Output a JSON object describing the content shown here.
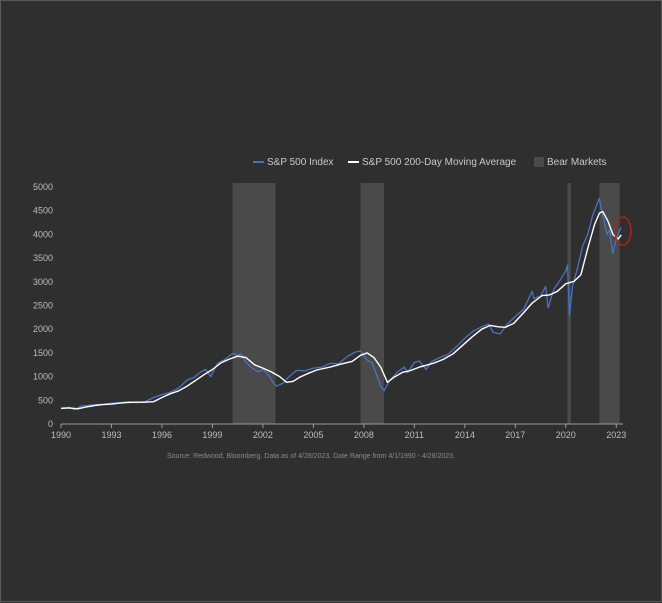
{
  "chart_data": {
    "type": "line",
    "title": "",
    "xlabel": "",
    "ylabel": "",
    "xlim": [
      1990,
      2023.4
    ],
    "ylim": [
      0,
      5000
    ],
    "y_ticks": [
      0,
      500,
      1000,
      1500,
      2000,
      2500,
      3000,
      3500,
      4000,
      4500,
      5000
    ],
    "x_ticks": [
      1990,
      1993,
      1996,
      1999,
      2002,
      2005,
      2008,
      2011,
      2014,
      2017,
      2020,
      2023
    ],
    "legend": {
      "placement": "top-right",
      "entries": [
        "S&P 500 Index",
        "S&P 500 200-Day Moving Average",
        "Bear Markets"
      ]
    },
    "colors": {
      "index": "#4a72c4",
      "moving_average": "#ffffff",
      "bear": "#4a4a4a",
      "axis": "#9a9a9a",
      "highlight": "#b02020"
    },
    "bear_markets": [
      {
        "start": 2000.2,
        "end": 2002.75
      },
      {
        "start": 2007.8,
        "end": 2009.2
      },
      {
        "start": 2020.1,
        "end": 2020.3
      },
      {
        "start": 2022.0,
        "end": 2023.2
      }
    ],
    "series": [
      {
        "name": "S&P 500 Index",
        "x": [
          1990.0,
          1990.5,
          1990.8,
          1991.2,
          1991.6,
          1992.0,
          1992.5,
          1993.0,
          1993.5,
          1994.0,
          1994.5,
          1995.0,
          1995.5,
          1996.0,
          1996.5,
          1997.0,
          1997.5,
          1997.9,
          1998.3,
          1998.6,
          1998.9,
          1999.3,
          1999.7,
          2000.2,
          2000.5,
          2000.7,
          2001.0,
          2001.3,
          2001.7,
          2002.0,
          2002.3,
          2002.6,
          2002.8,
          2003.2,
          2003.5,
          2004.0,
          2004.5,
          2005.0,
          2005.5,
          2006.0,
          2006.5,
          2007.0,
          2007.5,
          2007.8,
          2008.2,
          2008.5,
          2008.8,
          2009.0,
          2009.2,
          2009.5,
          2010.0,
          2010.4,
          2010.6,
          2011.0,
          2011.3,
          2011.7,
          2012.0,
          2012.5,
          2013.0,
          2013.5,
          2014.0,
          2014.5,
          2015.0,
          2015.4,
          2015.7,
          2016.1,
          2016.5,
          2017.0,
          2017.5,
          2018.0,
          2018.1,
          2018.5,
          2018.8,
          2018.95,
          2019.3,
          2019.6,
          2020.0,
          2020.1,
          2020.22,
          2020.4,
          2020.7,
          2021.0,
          2021.3,
          2021.6,
          2021.99,
          2022.2,
          2022.45,
          2022.6,
          2022.78,
          2023.0,
          2023.15,
          2023.3
        ],
        "values": [
          340,
          350,
          300,
          380,
          390,
          410,
          415,
          440,
          450,
          470,
          450,
          470,
          560,
          620,
          670,
          760,
          930,
          980,
          1100,
          1150,
          1000,
          1280,
          1350,
          1490,
          1450,
          1480,
          1300,
          1200,
          1100,
          1150,
          1050,
          880,
          800,
          860,
          980,
          1130,
          1120,
          1180,
          1200,
          1280,
          1270,
          1420,
          1520,
          1540,
          1350,
          1280,
          1000,
          800,
          700,
          900,
          1100,
          1200,
          1080,
          1300,
          1330,
          1150,
          1310,
          1400,
          1470,
          1630,
          1810,
          1960,
          2050,
          2110,
          1930,
          1900,
          2100,
          2270,
          2420,
          2800,
          2650,
          2700,
          2900,
          2450,
          2850,
          3000,
          3230,
          3350,
          2300,
          2900,
          3300,
          3750,
          4000,
          4400,
          4760,
          4400,
          4000,
          4100,
          3600,
          3900,
          4050,
          4150
        ]
      },
      {
        "name": "S&P 500 200-Day Moving Average",
        "x": [
          1990.0,
          1990.5,
          1991.0,
          1991.5,
          1992.0,
          1992.5,
          1993.0,
          1993.5,
          1994.0,
          1994.5,
          1995.0,
          1995.5,
          1996.0,
          1996.5,
          1997.0,
          1997.5,
          1998.0,
          1998.5,
          1999.0,
          1999.5,
          2000.0,
          2000.5,
          2001.0,
          2001.5,
          2002.0,
          2002.5,
          2003.0,
          2003.4,
          2003.8,
          2004.2,
          2004.7,
          2005.2,
          2006.0,
          2006.7,
          2007.3,
          2007.8,
          2008.2,
          2008.6,
          2009.0,
          2009.4,
          2009.8,
          2010.3,
          2010.8,
          2011.3,
          2011.8,
          2012.2,
          2012.7,
          2013.3,
          2013.8,
          2014.4,
          2015.0,
          2015.5,
          2016.0,
          2016.4,
          2016.9,
          2017.5,
          2018.0,
          2018.6,
          2019.0,
          2019.5,
          2020.0,
          2020.5,
          2020.9,
          2021.3,
          2021.7,
          2022.0,
          2022.2,
          2022.5,
          2022.8,
          2023.1,
          2023.3
        ],
        "values": [
          330,
          340,
          320,
          360,
          390,
          410,
          420,
          440,
          455,
          460,
          460,
          470,
          560,
          640,
          700,
          800,
          920,
          1040,
          1150,
          1290,
          1370,
          1430,
          1400,
          1250,
          1180,
          1100,
          1000,
          880,
          900,
          990,
          1070,
          1140,
          1200,
          1270,
          1320,
          1450,
          1500,
          1400,
          1200,
          880,
          990,
          1090,
          1130,
          1200,
          1250,
          1290,
          1360,
          1480,
          1640,
          1830,
          2000,
          2080,
          2050,
          2040,
          2120,
          2350,
          2550,
          2710,
          2720,
          2800,
          2960,
          3010,
          3150,
          3700,
          4200,
          4450,
          4480,
          4280,
          4000,
          3900,
          3990
        ]
      }
    ],
    "source": "Source: Redwood, Bloomberg. Data as of 4/28/2023. Date Range from 4/1/1990 - 4/28/2023."
  }
}
